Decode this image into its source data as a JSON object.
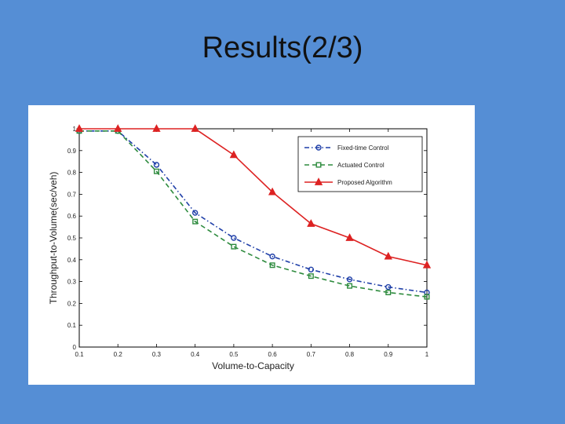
{
  "slide": {
    "title": "Results(2/3)"
  },
  "chart_data": {
    "type": "line",
    "xlabel": "Volume-to-Capacity",
    "ylabel": "Throughput-to-Volume(sec/veh)",
    "x": [
      0.1,
      0.2,
      0.3,
      0.4,
      0.5,
      0.6,
      0.7,
      0.8,
      0.9,
      1
    ],
    "xlim": [
      0.1,
      1
    ],
    "ylim": [
      0,
      1
    ],
    "xticks": [
      "0.1",
      "0.2",
      "0.3",
      "0.4",
      "0.5",
      "0.6",
      "0.7",
      "0.8",
      "0.9",
      "1"
    ],
    "yticks": [
      "0",
      "0.1",
      "0.2",
      "0.3",
      "0.4",
      "0.5",
      "0.6",
      "0.7",
      "0.8",
      "0.9",
      "1"
    ],
    "grid": false,
    "legend_position": "top-right",
    "series": [
      {
        "name": "Fixed-time Control",
        "color": "#1f3fa8",
        "marker": "circle",
        "line": "dash-dot",
        "values": [
          0.99,
          0.99,
          0.835,
          0.615,
          0.5,
          0.415,
          0.355,
          0.31,
          0.275,
          0.25
        ]
      },
      {
        "name": "Actuated Control",
        "color": "#2e8b3e",
        "marker": "square",
        "line": "dashed",
        "values": [
          0.99,
          0.99,
          0.805,
          0.575,
          0.46,
          0.375,
          0.325,
          0.28,
          0.25,
          0.23
        ]
      },
      {
        "name": "Proposed Algorithm",
        "color": "#dd2222",
        "marker": "triangle",
        "line": "solid",
        "values": [
          1.0,
          1.0,
          1.0,
          1.0,
          0.88,
          0.71,
          0.565,
          0.5,
          0.415,
          0.375
        ]
      }
    ]
  }
}
